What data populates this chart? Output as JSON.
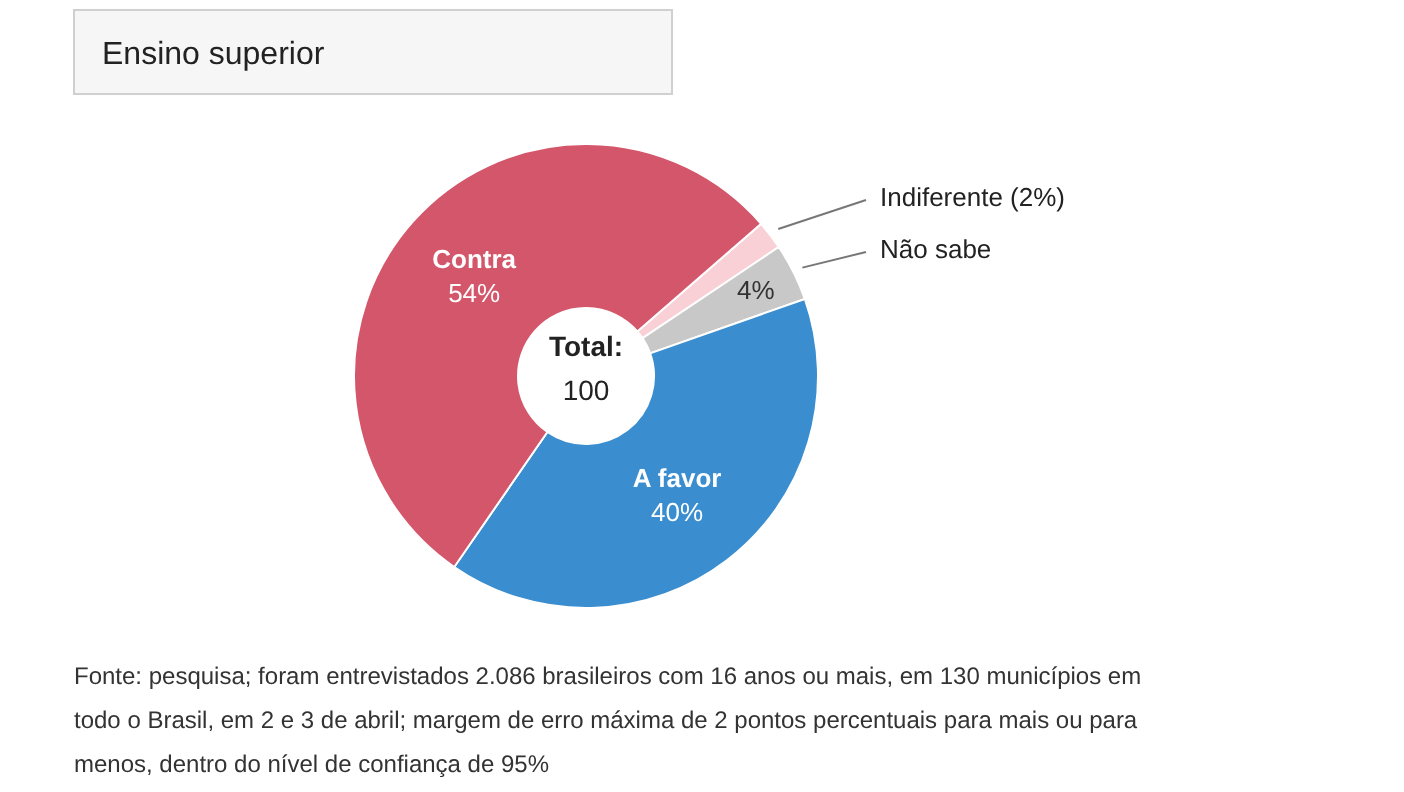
{
  "chart_data": {
    "type": "donut",
    "title": "Ensino superior",
    "categories": [
      "Indiferente",
      "Não sabe",
      "A favor",
      "Contra"
    ],
    "values": [
      2,
      4,
      40,
      54
    ],
    "value_labels": [
      "(2%)",
      "4%",
      "40%",
      "54%"
    ],
    "colors": [
      "#f9d0d6",
      "#c8c8c8",
      "#3a8dcf",
      "#d4566a"
    ],
    "annotations": [
      "Total:\n100",
      "Fonte: pesquisa; foram entrevistados 2.086 brasileiros com 16 anos ou mais, em 130 municípios em todo o Brasil, em 2 e 3 de abril; margem de erro máxima de 2 pontos percentuais para mais ou para menos, dentro do nível de confiança de 95%"
    ]
  }
}
